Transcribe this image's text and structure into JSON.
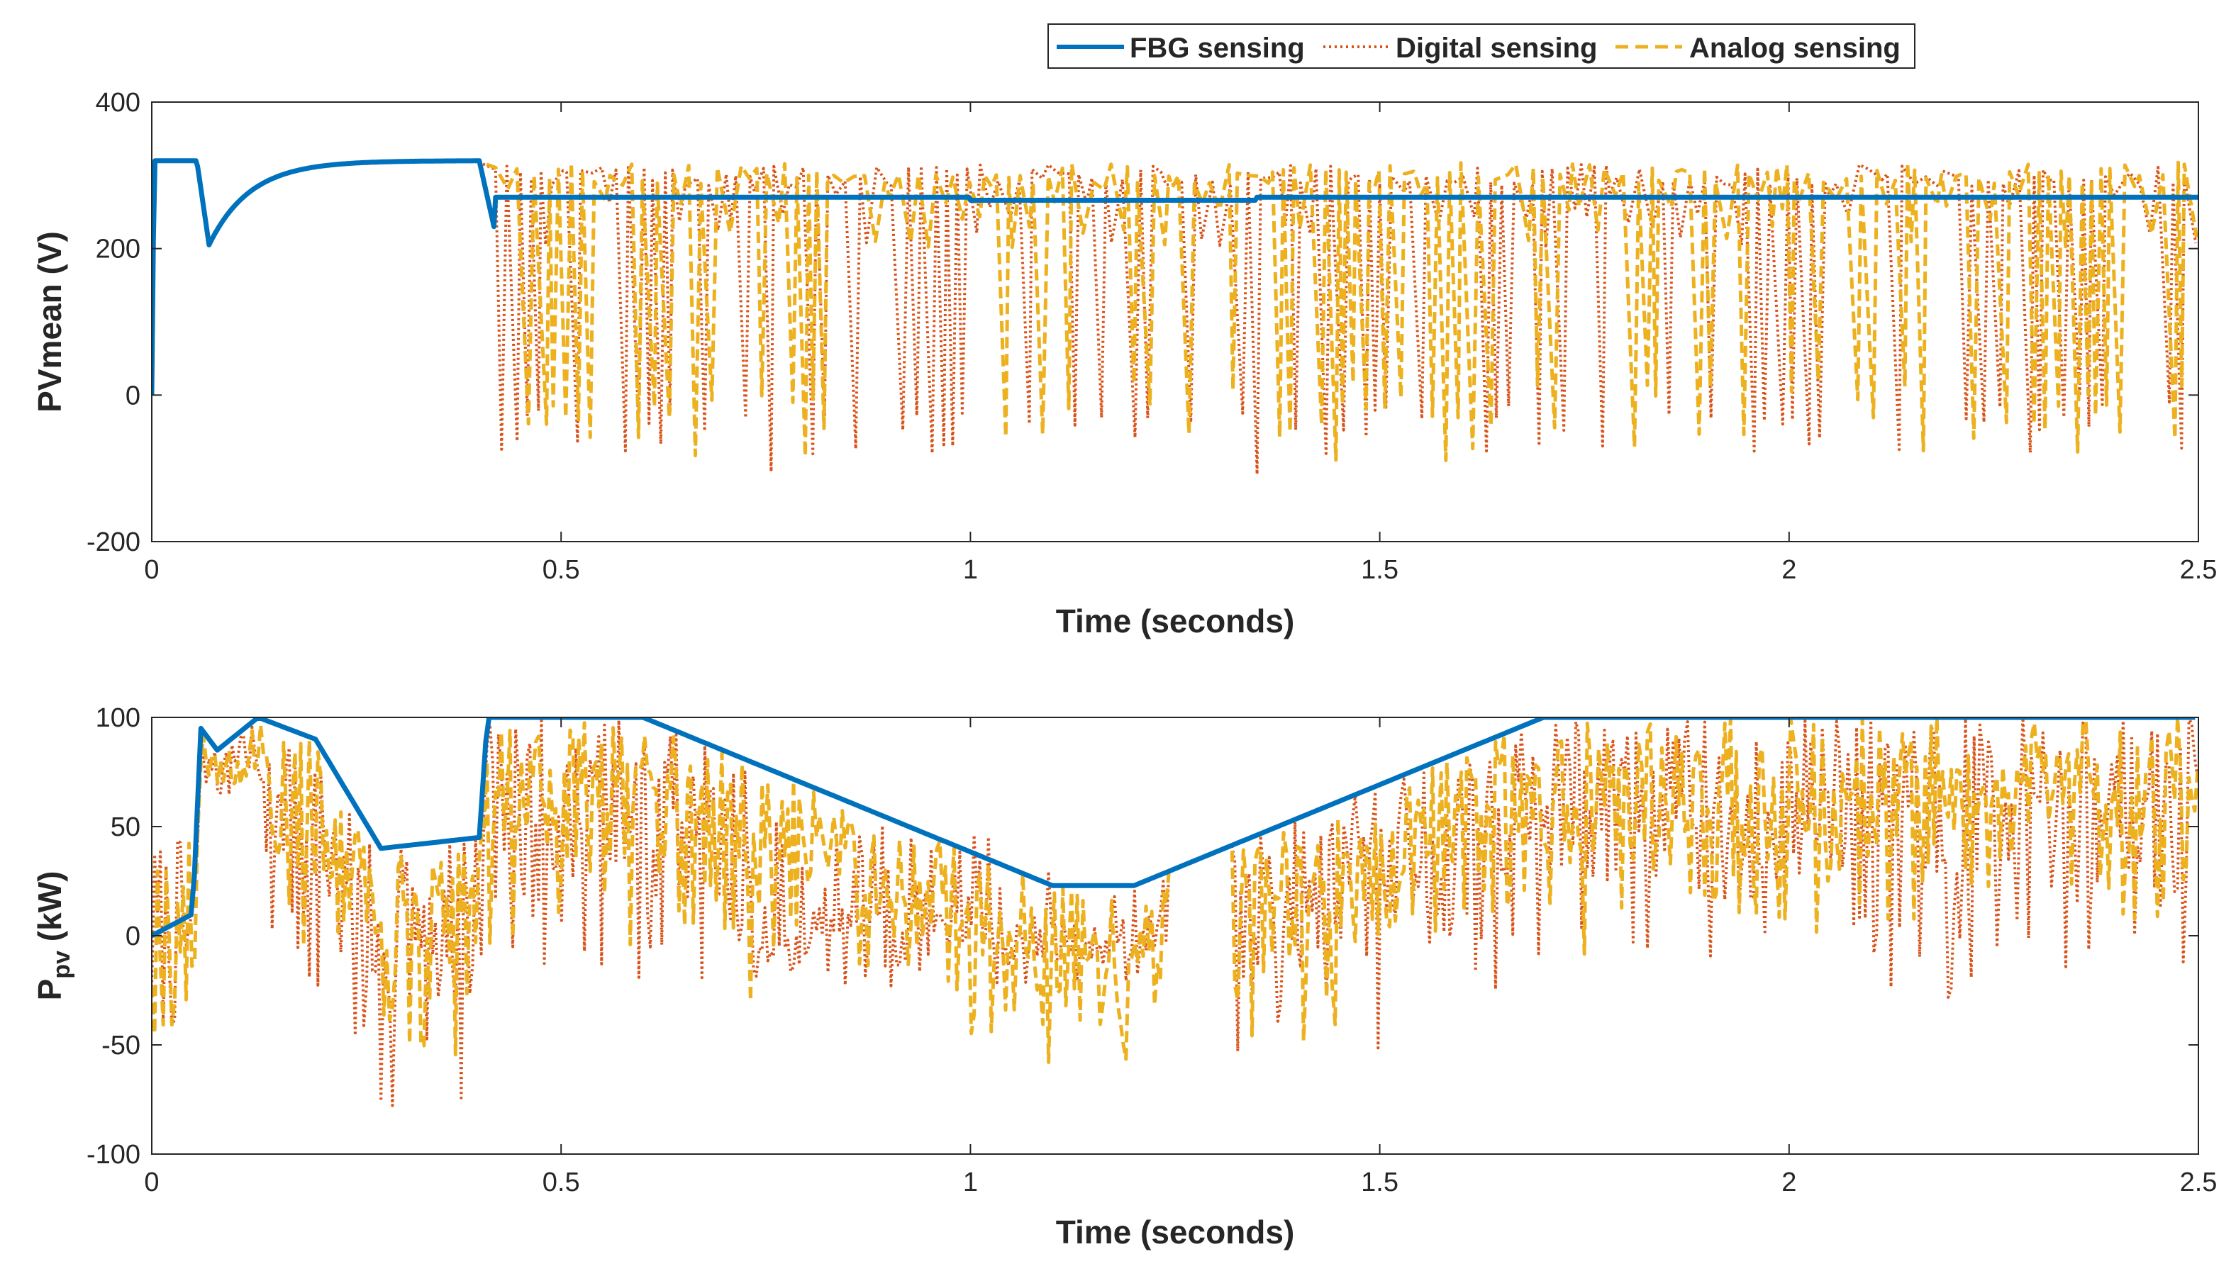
{
  "legend": {
    "items": [
      {
        "label": "FBG sensing",
        "color": "#0072BD",
        "style": "solid"
      },
      {
        "label": "Digital sensing",
        "color": "#D95319",
        "style": "dotted"
      },
      {
        "label": "Analog sensing",
        "color": "#EDB120",
        "style": "dashed"
      }
    ]
  },
  "chart_data": [
    {
      "type": "line",
      "title": "",
      "xlabel": "Time (seconds)",
      "ylabel": "PVmean (V)",
      "xlim": [
        0,
        2.5
      ],
      "ylim": [
        -200,
        400
      ],
      "xticks": [
        0,
        0.5,
        1,
        1.5,
        2,
        2.5
      ],
      "xtick_labels": [
        "0",
        "0.5",
        "1",
        "1.5",
        "2",
        "2.5"
      ],
      "yticks": [
        -200,
        0,
        200,
        400
      ],
      "ytick_labels": [
        "-200",
        "0",
        "200",
        "400"
      ],
      "series": [
        {
          "name": "FBG sensing",
          "kind": "fbg_pv",
          "t_switch": 0.42,
          "steady": 270,
          "startup_peak": 320,
          "startup_dip": 205
        },
        {
          "name": "Digital sensing",
          "kind": "noisy_pv",
          "high": 315,
          "low": -80,
          "seed": 11
        },
        {
          "name": "Analog sensing",
          "kind": "noisy_pv",
          "high": 318,
          "low": -60,
          "seed": 29
        }
      ]
    },
    {
      "type": "line",
      "title": "",
      "xlabel": "Time (seconds)",
      "ylabel": "P_pv (kW)",
      "xlim": [
        0,
        2.5
      ],
      "ylim": [
        -100,
        100
      ],
      "xticks": [
        0,
        0.5,
        1,
        1.5,
        2,
        2.5
      ],
      "xtick_labels": [
        "0",
        "0.5",
        "1",
        "1.5",
        "2",
        "2.5"
      ],
      "yticks": [
        -100,
        -50,
        0,
        50,
        100
      ],
      "ytick_labels": [
        "-100",
        "-50",
        "0",
        "50",
        "100"
      ],
      "series": [
        {
          "name": "FBG sensing",
          "kind": "envelope",
          "points": [
            [
              0.0,
              0
            ],
            [
              0.05,
              10
            ],
            [
              0.06,
              95
            ],
            [
              0.08,
              85
            ],
            [
              0.13,
              100
            ],
            [
              0.2,
              90
            ],
            [
              0.28,
              40
            ],
            [
              0.4,
              45
            ],
            [
              0.41,
              100
            ],
            [
              0.6,
              100
            ],
            [
              1.1,
              23
            ],
            [
              1.2,
              23
            ],
            [
              1.7,
              100
            ],
            [
              2.5,
              100
            ]
          ]
        },
        {
          "name": "Digital sensing",
          "kind": "noisy_p",
          "seed": 7
        },
        {
          "name": "Analog sensing",
          "kind": "noisy_p",
          "seed": 19
        }
      ]
    }
  ]
}
